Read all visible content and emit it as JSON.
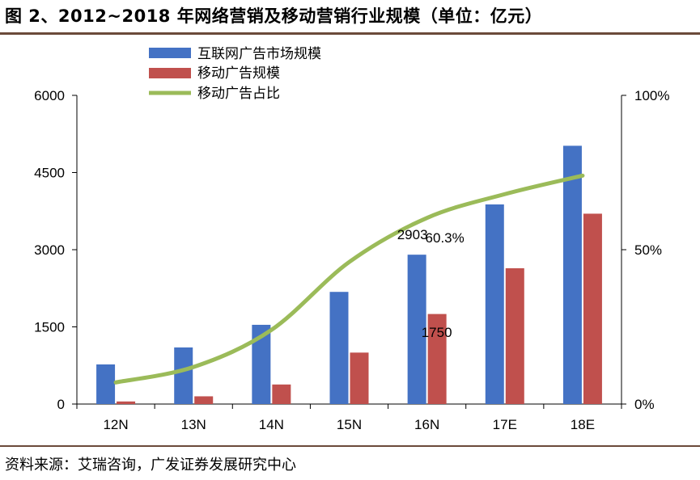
{
  "title": "图 2、2012~2018 年网络营销及移动营销行业规模（单位：亿元）",
  "source": "资料来源：艾瑞咨询，广发证券发展研究中心",
  "colors": {
    "internet": "#4472c4",
    "mobile": "#c0504d",
    "share": "#9bbb59",
    "rule": "#6b4a3a"
  },
  "chart_data": {
    "type": "bar",
    "categories": [
      "12N",
      "13N",
      "14N",
      "15N",
      "16N",
      "17E",
      "18E"
    ],
    "series": [
      {
        "name": "互联网广告市场规模",
        "type": "bar",
        "axis": "left",
        "values": [
          770,
          1100,
          1540,
          2180,
          2903,
          3880,
          5020
        ]
      },
      {
        "name": "移动广告规模",
        "type": "bar",
        "axis": "left",
        "values": [
          50,
          150,
          380,
          1000,
          1750,
          2640,
          3700
        ]
      },
      {
        "name": "移动广告占比",
        "type": "line",
        "axis": "right",
        "unit": "%",
        "values": [
          7,
          12,
          24,
          46,
          60.3,
          68,
          74
        ]
      }
    ],
    "left_axis": {
      "ylim": [
        0,
        6000
      ],
      "ticks": [
        "0",
        "1500",
        "3000",
        "4500",
        "6000"
      ]
    },
    "right_axis": {
      "ylim": [
        0,
        100
      ],
      "ticks": [
        "0%",
        "50%",
        "100%"
      ]
    },
    "annotations": [
      "2903",
      "60.3%",
      "1750"
    ],
    "legend_position": "top-left",
    "grid": false
  }
}
